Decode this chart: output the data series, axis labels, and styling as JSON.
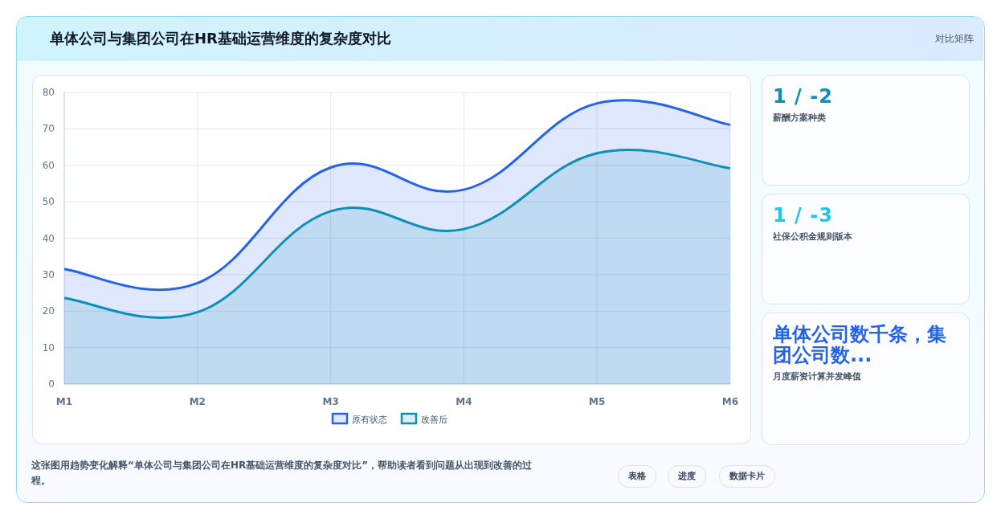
{
  "chart_data": {
    "type": "area",
    "title": "单体公司与集团公司在HR基础运营维度的复杂度对比",
    "categories": [
      "M1",
      "M2",
      "M3",
      "M4",
      "M5",
      "M6"
    ],
    "series": [
      {
        "name": "原有状态",
        "color": "#2563eb",
        "values": [
          31.5,
          27.7,
          59.4,
          53.3,
          77.0,
          71.1
        ]
      },
      {
        "name": "改善后",
        "color": "#0e8fb5",
        "values": [
          23.6,
          19.7,
          47.4,
          42.5,
          63.3,
          59.2
        ]
      }
    ],
    "ylim": [
      0,
      80
    ],
    "yticks": [
      0,
      10,
      20,
      30,
      40,
      50,
      60,
      70,
      80
    ],
    "grid": true,
    "legend": "bottom",
    "annotations": [
      "对比矩阵",
      "1 / -2",
      "薪酬方案种类",
      "1 / -3",
      "社保公积金规则版本",
      "单体公司数千条，集团公司数...",
      "月度薪资计算并发峰值",
      "这张图用趋势变化解释“单体公司与集团公司在HR基础运营维度的复杂度对比”，帮助读者看到问题从出现到改善的过程。",
      "表格",
      "进度",
      "数据卡片"
    ]
  }
}
